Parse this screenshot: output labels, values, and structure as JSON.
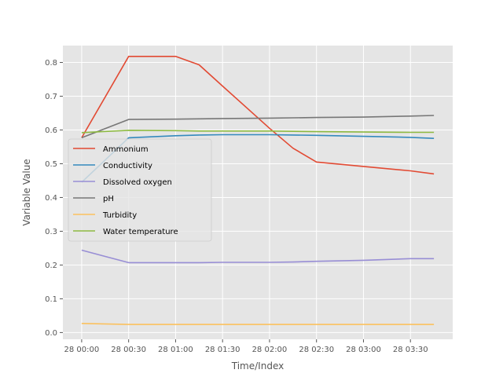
{
  "chart_data": {
    "type": "line",
    "xlabel": "Time/Index",
    "ylabel": "Variable Value",
    "x": [
      "28 00:00",
      "28 00:30",
      "28 01:00",
      "28 01:15",
      "28 01:30",
      "28 02:00",
      "28 02:15",
      "28 02:30",
      "28 03:00",
      "28 03:30",
      "28 03:45"
    ],
    "x_hours": [
      0,
      0.5,
      1.0,
      1.25,
      1.5,
      2.0,
      2.25,
      2.5,
      3.0,
      3.5,
      3.75
    ],
    "xticks": [
      "28 00:00",
      "28 00:30",
      "28 01:00",
      "28 01:30",
      "28 02:00",
      "28 02:30",
      "28 03:00",
      "28 03:30"
    ],
    "xlim_hours": [
      -0.2,
      3.95
    ],
    "yticks": [
      "0.0",
      "0.1",
      "0.2",
      "0.3",
      "0.4",
      "0.5",
      "0.6",
      "0.7",
      "0.8"
    ],
    "ylim": [
      -0.02,
      0.85
    ],
    "grid": true,
    "legend_position": "center-left",
    "series": [
      {
        "name": "Ammonium",
        "color": "#E24A33",
        "values": [
          0.577,
          0.818,
          0.818,
          0.793,
          0.73,
          0.605,
          0.546,
          0.505,
          0.492,
          0.479,
          0.47
        ]
      },
      {
        "name": "Conductivity",
        "color": "#348ABD",
        "values": [
          0.445,
          0.577,
          0.583,
          0.585,
          0.586,
          0.586,
          0.585,
          0.584,
          0.581,
          0.578,
          0.575
        ]
      },
      {
        "name": "Dissolved oxygen",
        "color": "#988ED5",
        "values": [
          0.244,
          0.207,
          0.207,
          0.207,
          0.208,
          0.208,
          0.209,
          0.211,
          0.214,
          0.219,
          0.219
        ]
      },
      {
        "name": "pH",
        "color": "#777777",
        "values": [
          0.577,
          0.631,
          0.632,
          0.633,
          0.634,
          0.635,
          0.636,
          0.637,
          0.638,
          0.641,
          0.643
        ]
      },
      {
        "name": "Turbidity",
        "color": "#FBC15E",
        "values": [
          0.027,
          0.024,
          0.024,
          0.024,
          0.024,
          0.024,
          0.024,
          0.024,
          0.024,
          0.024,
          0.024
        ]
      },
      {
        "name": "Water temperature",
        "color": "#8EBA42",
        "values": [
          0.592,
          0.599,
          0.598,
          0.597,
          0.597,
          0.597,
          0.596,
          0.595,
          0.594,
          0.593,
          0.593
        ]
      }
    ]
  }
}
